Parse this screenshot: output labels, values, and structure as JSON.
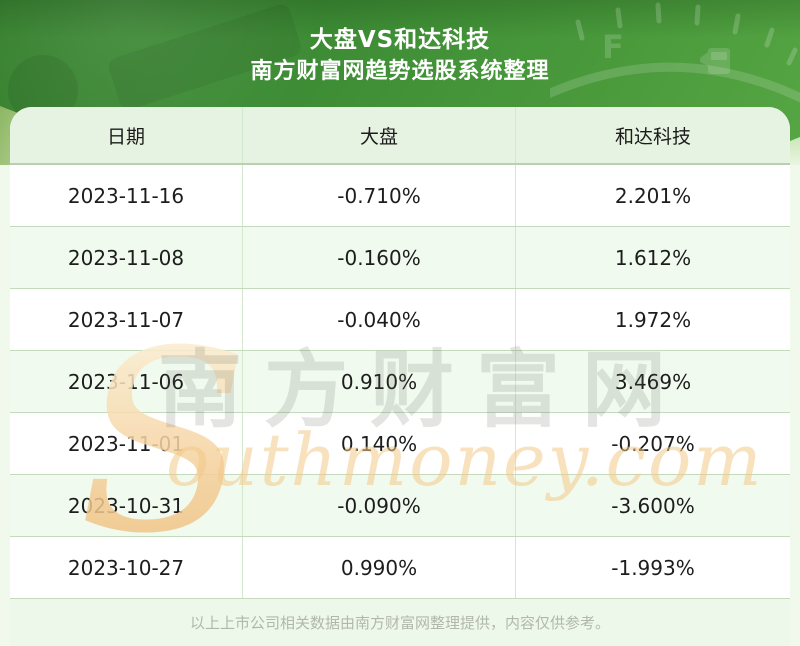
{
  "header": {
    "title": "大盘VS和达科技",
    "subtitle": "南方财富网趋势选股系统整理"
  },
  "table": {
    "columns": [
      "日期",
      "大盘",
      "和达科技"
    ],
    "rows": [
      [
        "2023-11-16",
        "-0.710%",
        "2.201%"
      ],
      [
        "2023-11-08",
        "-0.160%",
        "1.612%"
      ],
      [
        "2023-11-07",
        "-0.040%",
        "1.972%"
      ],
      [
        "2023-11-06",
        "0.910%",
        "3.469%"
      ],
      [
        "2023-11-01",
        "0.140%",
        "-0.207%"
      ],
      [
        "2023-10-31",
        "-0.090%",
        "-3.600%"
      ],
      [
        "2023-10-27",
        "0.990%",
        "-1.993%"
      ]
    ]
  },
  "chart_data": {
    "type": "table",
    "title": "大盘VS和达科技",
    "subtitle": "南方财富网趋势选股系统整理",
    "categories": [
      "2023-11-16",
      "2023-11-08",
      "2023-11-07",
      "2023-11-06",
      "2023-11-01",
      "2023-10-31",
      "2023-10-27"
    ],
    "series": [
      {
        "name": "大盘",
        "values_pct": [
          -0.71,
          -0.16,
          -0.04,
          0.91,
          0.14,
          -0.09,
          0.99
        ]
      },
      {
        "name": "和达科技",
        "values_pct": [
          2.201,
          1.612,
          1.972,
          3.469,
          -0.207,
          -3.6,
          -1.993
        ]
      }
    ],
    "value_format": "percent, 3 decimals"
  },
  "watermark": {
    "initial": "S",
    "latin": "outhmoney.com",
    "cjk": "南方财富网"
  },
  "footer": {
    "note": "以上上市公司相关数据由南方财富网整理提供，内容仅供参考。"
  },
  "colors": {
    "hero_green_dark": "#35802d",
    "hero_green_light": "#57a644",
    "panel_bg": "#eef8ea",
    "table_header_bg": "#e7f3e2",
    "row_alt_bg": "#f1faee",
    "row_bg": "#ffffff",
    "divider_h": "#c5dabd",
    "divider_v": "#d4e8cd",
    "footer_text": "#b2b7ab",
    "watermark_orange": "#f3cb92",
    "watermark_grey": "rgba(95,100,90,0.17)",
    "text": "#1d1d1d",
    "title_text": "#ffffff"
  }
}
